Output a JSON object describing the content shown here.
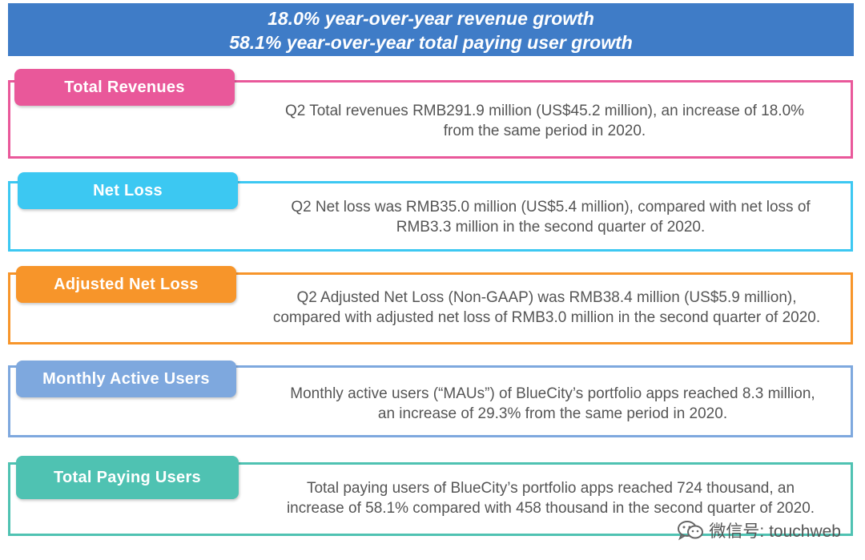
{
  "banner": {
    "line1": "18.0% year-over-year revenue growth",
    "line2": "58.1% year-over-year total paying user growth"
  },
  "colors": {
    "banner": "#3f7cc7",
    "total_revenues": "#e9589a",
    "net_loss": "#3cc8f2",
    "adjusted_net_loss": "#f7952a",
    "monthly_active_users": "#7ea8de",
    "total_paying_users": "#4fc2b2"
  },
  "cards": [
    {
      "title": "Total Revenues",
      "line1": "Q2 Total revenues RMB291.9 million (US$45.2 million), an increase of 18.0%",
      "line2": "from the same period in 2020."
    },
    {
      "title": "Net Loss",
      "line1": "Q2 Net loss was RMB35.0 million (US$5.4 million), compared with net loss of",
      "line2": "RMB3.3 million in the second quarter of 2020."
    },
    {
      "title": "Adjusted Net Loss",
      "line1": "Q2 Adjusted Net Loss (Non-GAAP) was RMB38.4 million (US$5.9 million),",
      "line2": "compared with adjusted net loss of RMB3.0 million in the second quarter of 2020."
    },
    {
      "title": "Monthly Active Users",
      "line1": "Monthly active users (“MAUs”) of BlueCity’s portfolio apps reached 8.3 million,",
      "line2": "an increase of 29.3% from the same period in 2020."
    },
    {
      "title": "Total Paying Users",
      "line1": "Total paying users of BlueCity’s portfolio apps reached 724 thousand, an",
      "line2": "increase of 58.1% compared with 458 thousand in the second quarter of 2020."
    }
  ],
  "watermark": {
    "icon": "wechat-icon",
    "text": "微信号: touchweb"
  }
}
